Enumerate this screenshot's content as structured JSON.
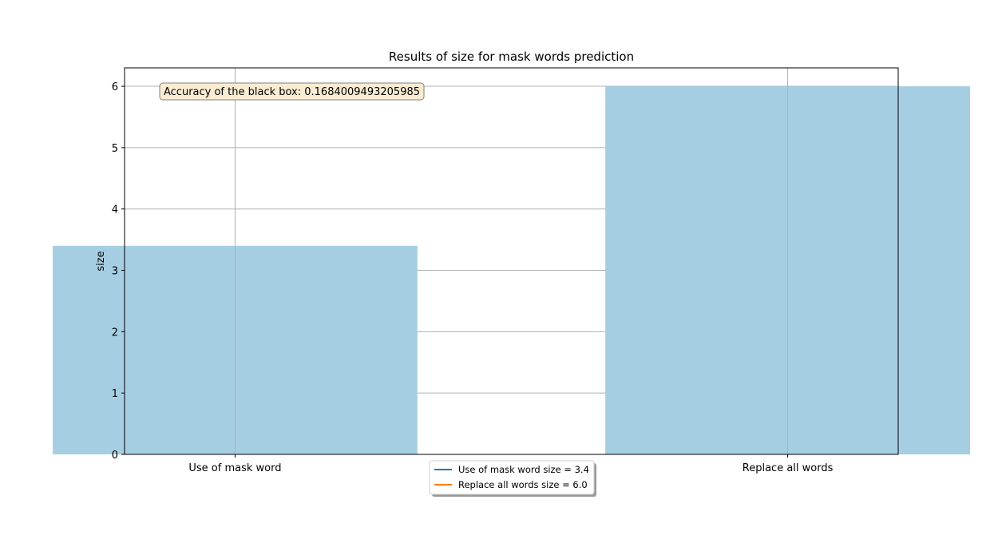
{
  "chart_data": {
    "type": "bar",
    "title": "Results of size for mask words prediction",
    "xlabel": "",
    "ylabel": "size",
    "categories": [
      "Use of mask word",
      "Replace all words"
    ],
    "values": [
      3.4,
      6.0
    ],
    "ylim": [
      0,
      6.3
    ],
    "yticks": [
      "0",
      "1",
      "2",
      "3",
      "4",
      "5",
      "6"
    ],
    "grid": true,
    "bar_color": "#a6cee3",
    "annotation": "Accuracy of the black box: 0.1684009493205985",
    "legend": {
      "placement": "bottom-center",
      "entries": [
        {
          "label": "Use of mask word size = 3.4",
          "color": "#1f77b4"
        },
        {
          "label": "Replace all words size = 6.0",
          "color": "#ff7f0e"
        }
      ]
    }
  }
}
